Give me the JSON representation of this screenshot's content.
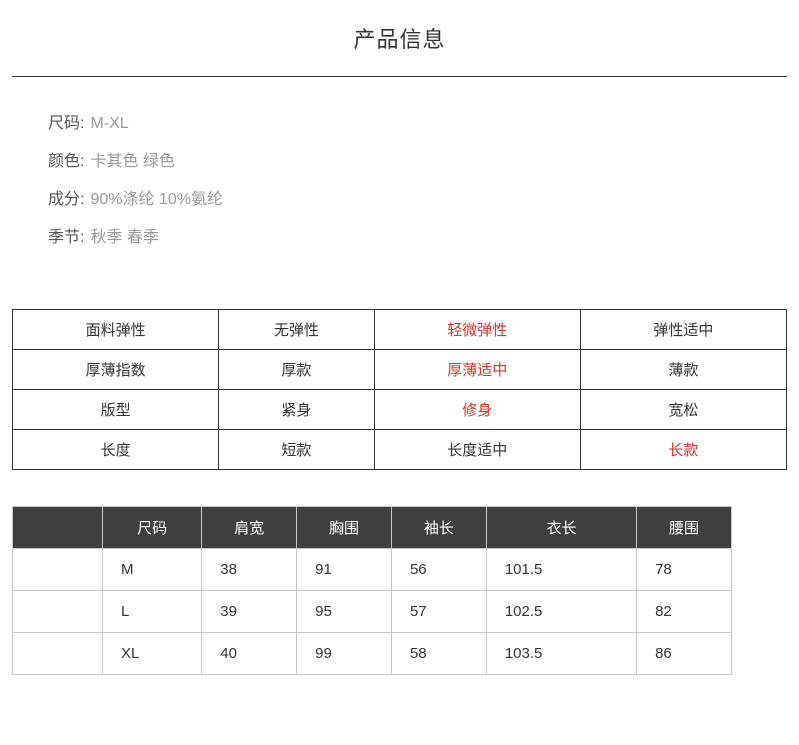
{
  "title": "产品信息",
  "specs": [
    {
      "label": "尺码:",
      "value": "M-XL"
    },
    {
      "label": "颜色:",
      "value": "卡其色 绿色"
    },
    {
      "label": "成分:",
      "value": "90%涤纶 10%氨纶"
    },
    {
      "label": "季节:",
      "value": "秋季 春季"
    }
  ],
  "attr_table": {
    "colors": {
      "normal": "#333333",
      "highlight": "#d9362a",
      "border": "#333333"
    },
    "rows": [
      [
        {
          "text": "面料弹性",
          "hl": false
        },
        {
          "text": "无弹性",
          "hl": false
        },
        {
          "text": "轻微弹性",
          "hl": true
        },
        {
          "text": "弹性适中",
          "hl": false
        }
      ],
      [
        {
          "text": "厚薄指数",
          "hl": false
        },
        {
          "text": "厚款",
          "hl": false
        },
        {
          "text": "厚薄适中",
          "hl": true
        },
        {
          "text": "薄款",
          "hl": false
        }
      ],
      [
        {
          "text": "版型",
          "hl": false
        },
        {
          "text": "紧身",
          "hl": false
        },
        {
          "text": "修身",
          "hl": true
        },
        {
          "text": "宽松",
          "hl": false
        }
      ],
      [
        {
          "text": "长度",
          "hl": false
        },
        {
          "text": "短款",
          "hl": false
        },
        {
          "text": "长度适中",
          "hl": false
        },
        {
          "text": "长款",
          "hl": true
        }
      ]
    ]
  },
  "size_table": {
    "header_bg": "#3f3f3f",
    "header_fg": "#ffffff",
    "border": "#c8c8c8",
    "columns": [
      "",
      "尺码",
      "肩宽",
      "胸围",
      "袖长",
      "衣长",
      "腰围"
    ],
    "rows": [
      [
        "",
        "M",
        "38",
        "91",
        "56",
        "101.5",
        "78"
      ],
      [
        "",
        "L",
        "39",
        "95",
        "57",
        "102.5",
        "82"
      ],
      [
        "",
        "XL",
        "40",
        "99",
        "58",
        "103.5",
        "86"
      ]
    ]
  }
}
